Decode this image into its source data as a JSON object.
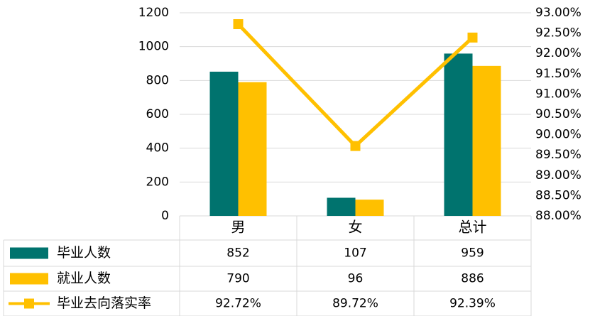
{
  "chart_data": {
    "type": "bar",
    "categories": [
      "男",
      "女",
      "总计"
    ],
    "series": [
      {
        "name": "毕业人数",
        "color": "#00736e",
        "values": [
          852,
          107,
          959
        ]
      },
      {
        "name": "就业人数",
        "color": "#ffc000",
        "values": [
          790,
          96,
          886
        ]
      },
      {
        "name": "毕业去向落实率",
        "color": "#ffc000",
        "axis": "y2",
        "type": "line",
        "values": [
          92.72,
          89.72,
          92.39
        ],
        "value_labels": [
          "92.72%",
          "89.72%",
          "92.39%"
        ]
      }
    ],
    "ylim": [
      0,
      1200
    ],
    "yticks": [
      0,
      200,
      400,
      600,
      800,
      1000,
      1200
    ],
    "y2lim": [
      88,
      93
    ],
    "y2ticks": [
      {
        "value": 88,
        "label": "88.00%"
      },
      {
        "value": 88.5,
        "label": "88.50%"
      },
      {
        "value": 89,
        "label": "89.00%"
      },
      {
        "value": 89.5,
        "label": "89.50%"
      },
      {
        "value": 90,
        "label": "90.00%"
      },
      {
        "value": 90.5,
        "label": "90.50%"
      },
      {
        "value": 91,
        "label": "91.00%"
      },
      {
        "value": 91.5,
        "label": "91.50%"
      },
      {
        "value": 92,
        "label": "92.00%"
      },
      {
        "value": 92.5,
        "label": "92.50%"
      },
      {
        "value": 93,
        "label": "93.00%"
      }
    ],
    "grid": true
  }
}
